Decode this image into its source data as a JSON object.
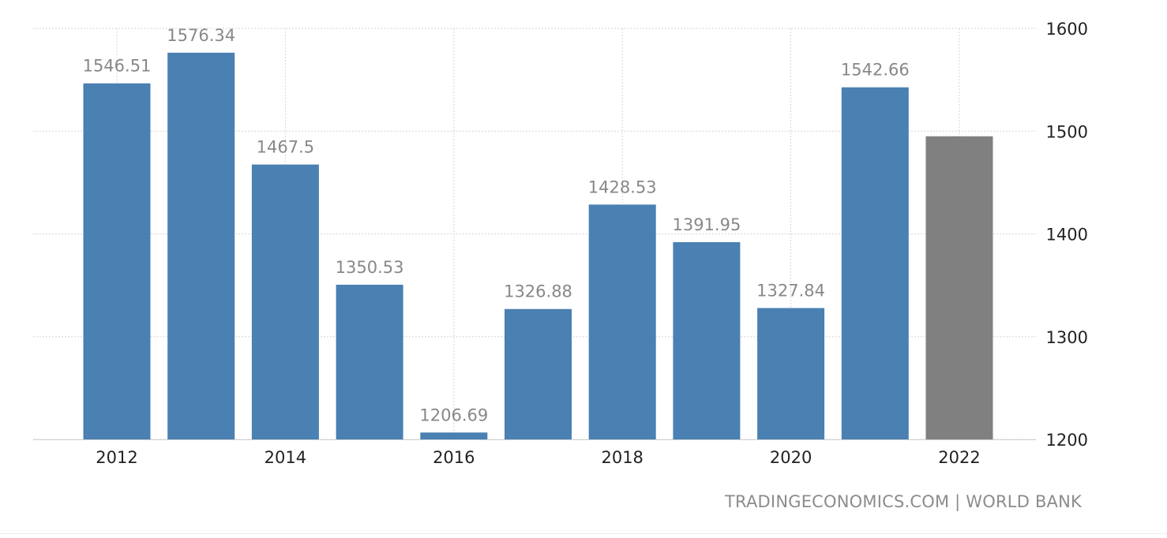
{
  "chart_data": {
    "type": "bar",
    "categories": [
      "2012",
      "2013",
      "2014",
      "2015",
      "2016",
      "2017",
      "2018",
      "2019",
      "2020",
      "2021",
      "2022"
    ],
    "values": [
      1546.51,
      1576.34,
      1467.5,
      1350.53,
      1206.69,
      1326.88,
      1428.53,
      1391.95,
      1327.84,
      1542.66,
      1495
    ],
    "data_labels": [
      "1546.51",
      "1576.34",
      "1467.5",
      "1350.53",
      "1206.69",
      "1326.88",
      "1428.53",
      "1391.95",
      "1327.84",
      "1542.66",
      ""
    ],
    "x_tick_labels": [
      "2012",
      "2014",
      "2016",
      "2018",
      "2020",
      "2022"
    ],
    "y_ticks": [
      1200,
      1300,
      1400,
      1500,
      1600
    ],
    "ylim": [
      1200,
      1600
    ],
    "y_axis_position": "right",
    "grid": true,
    "title": "",
    "xlabel": "",
    "ylabel": "",
    "colors": {
      "bar": "#4a80b2",
      "forecast_bar": "#808080",
      "label": "#888888",
      "axis_text": "#222222"
    }
  },
  "source_text": "TRADINGECONOMICS.COM | WORLD BANK"
}
